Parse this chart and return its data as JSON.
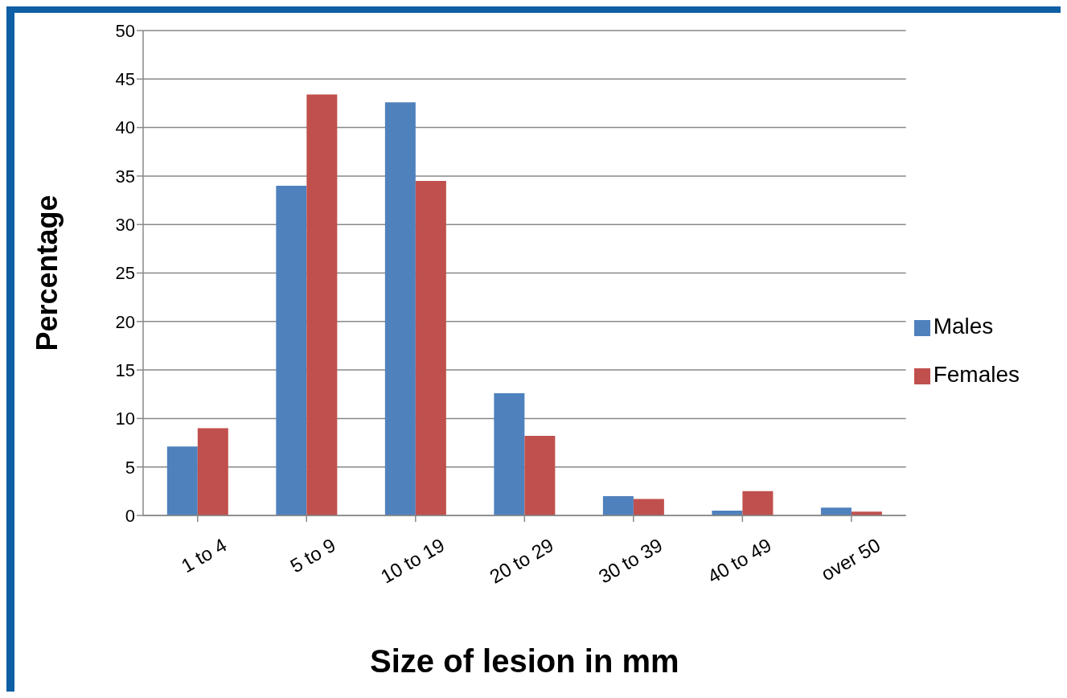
{
  "chart_data": {
    "type": "bar",
    "xlabel": "Size of lesion in mm",
    "ylabel": "Percentage",
    "categories": [
      "1 to 4",
      "5 to 9",
      "10 to 19",
      "20 to 29",
      "30 to 39",
      "40 to 49",
      "over 50"
    ],
    "series": [
      {
        "name": "Males",
        "color": "#4f81bd",
        "values": [
          7.1,
          34.0,
          42.6,
          12.6,
          2.0,
          0.5,
          0.8
        ]
      },
      {
        "name": "Females",
        "color": "#c0504d",
        "values": [
          9.0,
          43.4,
          34.5,
          8.2,
          1.7,
          2.5,
          0.4
        ]
      }
    ],
    "ylim": [
      0,
      50
    ],
    "yticks": [
      0,
      5,
      10,
      15,
      20,
      25,
      30,
      35,
      40,
      45,
      50
    ],
    "grid": "y",
    "legend": "right"
  }
}
